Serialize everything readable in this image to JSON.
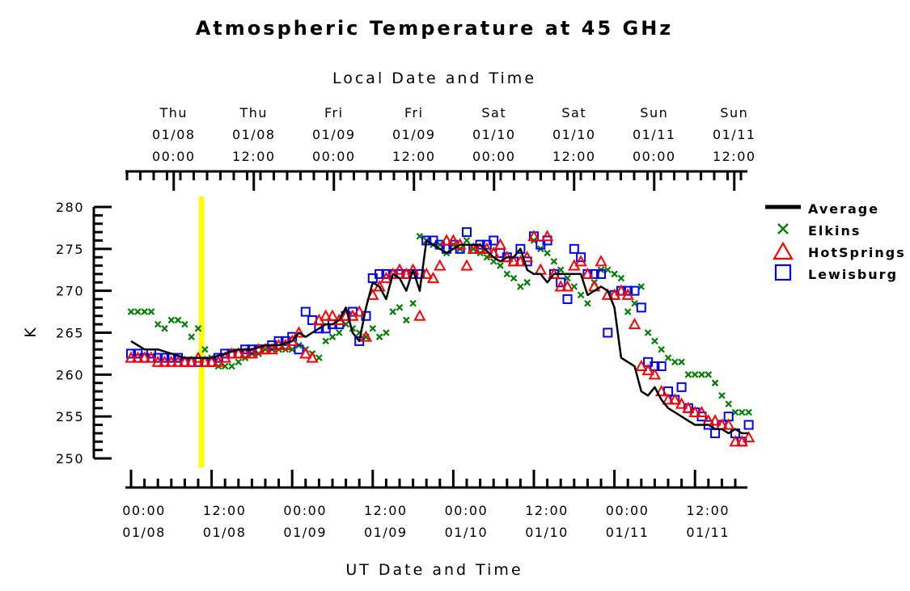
{
  "chart_data": {
    "type": "line",
    "title": "Atmospheric Temperature at 45 GHz",
    "xlabel": "UT Date and Time",
    "top_axis_label": "Local Date and Time",
    "ylabel": "K",
    "ylim": [
      250,
      280
    ],
    "yticks": [
      250,
      255,
      260,
      265,
      270,
      275,
      280
    ],
    "xlim": [
      0,
      92
    ],
    "x_units": "hours since 01/08 00:00 UT",
    "marker_hour": 10.5,
    "bottom_ticks": [
      {
        "x": 0,
        "time": "00:00",
        "date": "01/08"
      },
      {
        "x": 12,
        "time": "12:00",
        "date": "01/08"
      },
      {
        "x": 24,
        "time": "00:00",
        "date": "01/09"
      },
      {
        "x": 36,
        "time": "12:00",
        "date": "01/09"
      },
      {
        "x": 48,
        "time": "00:00",
        "date": "01/10"
      },
      {
        "x": 60,
        "time": "12:00",
        "date": "01/10"
      },
      {
        "x": 72,
        "time": "00:00",
        "date": "01/11"
      },
      {
        "x": 84,
        "time": "12:00",
        "date": "01/11"
      }
    ],
    "top_ticks": [
      {
        "x": 7,
        "day": "Thu",
        "date": "01/08",
        "time": "00:00"
      },
      {
        "x": 19,
        "day": "Thu",
        "date": "01/08",
        "time": "12:00"
      },
      {
        "x": 31,
        "day": "Fri",
        "date": "01/09",
        "time": "00:00"
      },
      {
        "x": 43,
        "day": "Fri",
        "date": "01/09",
        "time": "12:00"
      },
      {
        "x": 55,
        "day": "Sat",
        "date": "01/10",
        "time": "00:00"
      },
      {
        "x": 67,
        "day": "Sat",
        "date": "01/10",
        "time": "12:00"
      },
      {
        "x": 79,
        "day": "Sun",
        "date": "01/11",
        "time": "00:00"
      },
      {
        "x": 91,
        "day": "Sun",
        "date": "01/11",
        "time": "12:00"
      }
    ],
    "legend_position": "right",
    "series": [
      {
        "name": "Average",
        "style": "line",
        "color": "#000000",
        "x": [
          0,
          2,
          4,
          6,
          8,
          10,
          12,
          14,
          16,
          18,
          20,
          22,
          24,
          25,
          26,
          27,
          28,
          29,
          30,
          31,
          32,
          33,
          34,
          35,
          36,
          37,
          38,
          39,
          40,
          41,
          42,
          43,
          44,
          45,
          46,
          47,
          48,
          49,
          50,
          52,
          54,
          55,
          56,
          57,
          58,
          59,
          60,
          61,
          62,
          63,
          64,
          65,
          66,
          67,
          68,
          69,
          70,
          71,
          72,
          73,
          74,
          75,
          76,
          77,
          78,
          79,
          80,
          81,
          82,
          83,
          84,
          85,
          86,
          87,
          88,
          89,
          90,
          91,
          92
        ],
        "y": [
          264,
          263,
          263,
          262.5,
          262,
          262,
          262,
          262.5,
          263,
          263,
          263.5,
          263.5,
          264,
          265,
          264.5,
          265,
          265.5,
          266,
          266,
          266.5,
          268,
          265,
          264,
          268,
          271,
          270.5,
          269,
          272,
          271.5,
          270,
          272.5,
          270,
          276,
          275.5,
          275,
          274.5,
          275,
          275.5,
          275.5,
          275.5,
          274,
          273.5,
          274,
          274,
          275,
          272.5,
          272,
          272,
          271,
          272,
          272,
          272,
          272,
          272,
          269.5,
          270,
          270.5,
          270,
          268,
          262,
          261.5,
          261,
          258,
          257.5,
          258.5,
          257,
          256,
          255.5,
          255,
          254.5,
          254,
          254,
          254,
          253.5,
          253.5,
          253,
          253.5,
          253,
          253
        ]
      },
      {
        "name": "Elkins",
        "style": "marker",
        "marker": "x",
        "color": "#008000",
        "x": [
          0,
          1,
          2,
          3,
          4,
          5,
          6,
          7,
          8,
          9,
          10,
          11,
          12,
          13,
          14,
          15,
          16,
          17,
          18,
          19,
          20,
          21,
          22,
          23,
          24,
          25,
          26,
          27,
          28,
          29,
          30,
          31,
          32,
          33,
          34,
          35,
          36,
          37,
          38,
          39,
          40,
          41,
          42,
          43,
          44,
          45,
          46,
          47,
          48,
          49,
          50,
          51,
          52,
          53,
          54,
          55,
          56,
          57,
          58,
          59,
          60,
          61,
          62,
          63,
          64,
          65,
          66,
          67,
          68,
          69,
          70,
          71,
          72,
          73,
          74,
          75,
          76,
          77,
          78,
          79,
          80,
          81,
          82,
          83,
          84,
          85,
          86,
          87,
          88,
          89,
          90,
          91,
          92
        ],
        "y": [
          267.5,
          267.5,
          267.5,
          267.5,
          266,
          265.5,
          266.5,
          266.5,
          266,
          264.5,
          265.5,
          263,
          262,
          261,
          261,
          261,
          261.5,
          262,
          262.5,
          262.5,
          263,
          263,
          263,
          263,
          263,
          263.5,
          263,
          262.5,
          262,
          264,
          264.5,
          265,
          266,
          265.5,
          265,
          264.5,
          265.5,
          264.5,
          265,
          267.5,
          268,
          266.5,
          268.5,
          276.5,
          276,
          275.5,
          275.5,
          274.5,
          275.5,
          275,
          276,
          275,
          274.5,
          274,
          273.5,
          273,
          272,
          271.5,
          270.5,
          271,
          276,
          275,
          274.5,
          273.5,
          272.5,
          271.5,
          270.5,
          269.5,
          268.5,
          271,
          272.5,
          272.5,
          272,
          271.5,
          267.5,
          268.5,
          270.5,
          265,
          264,
          263,
          262,
          261.5,
          261.5,
          260,
          260,
          260,
          260,
          259,
          257.5,
          256.5,
          255.5,
          255.5,
          255.5
        ]
      },
      {
        "name": "HotSprings",
        "style": "marker",
        "marker": "triangle",
        "color": "#ff0000",
        "x": [
          0,
          1,
          2,
          3,
          4,
          5,
          6,
          7,
          8,
          9,
          10,
          11,
          12,
          13,
          14,
          15,
          16,
          17,
          18,
          19,
          20,
          21,
          22,
          23,
          24,
          25,
          26,
          27,
          28,
          29,
          30,
          31,
          32,
          33,
          34,
          35,
          36,
          37,
          38,
          39,
          40,
          41,
          42,
          43,
          44,
          45,
          46,
          47,
          48,
          49,
          50,
          51,
          52,
          53,
          54,
          55,
          56,
          57,
          58,
          59,
          60,
          61,
          62,
          63,
          64,
          65,
          66,
          67,
          68,
          69,
          70,
          71,
          72,
          73,
          74,
          75,
          76,
          77,
          78,
          79,
          80,
          81,
          82,
          83,
          84,
          85,
          86,
          87,
          88,
          89,
          90,
          91,
          92
        ],
        "y": [
          262,
          262,
          262,
          262,
          261.5,
          261.5,
          261.5,
          261.5,
          261.5,
          261.5,
          262,
          261.5,
          261.5,
          261.5,
          262,
          262.5,
          262.5,
          262.5,
          262.5,
          263,
          263,
          263,
          263.5,
          263.5,
          264,
          265,
          262.5,
          262,
          266.5,
          267,
          267,
          266.5,
          267,
          267,
          267.5,
          264.5,
          269.5,
          270.5,
          271.5,
          272,
          272.5,
          272,
          272.5,
          267,
          272,
          271.5,
          273,
          276,
          276,
          275.5,
          273,
          275,
          275,
          275,
          274.5,
          275.5,
          274,
          273.5,
          273.5,
          274,
          276.5,
          272.5,
          276.5,
          272,
          270.5,
          270.5,
          273,
          273.5,
          272,
          270.5,
          273.5,
          269.5,
          269.5,
          270,
          269.5,
          266,
          261,
          260.5,
          260,
          258,
          257,
          257,
          256.5,
          256,
          255.5,
          255.5,
          254.5,
          254.5,
          254,
          254,
          252,
          252,
          252.5
        ]
      },
      {
        "name": "Lewisburg",
        "style": "marker",
        "marker": "square",
        "color": "#0000ff",
        "x": [
          0,
          1,
          2,
          3,
          4,
          5,
          6,
          7,
          8,
          9,
          10,
          11,
          12,
          13,
          14,
          15,
          16,
          17,
          18,
          19,
          20,
          21,
          22,
          23,
          24,
          25,
          26,
          27,
          28,
          29,
          30,
          31,
          32,
          33,
          34,
          35,
          36,
          37,
          38,
          39,
          40,
          41,
          42,
          43,
          44,
          45,
          46,
          47,
          48,
          49,
          50,
          51,
          52,
          53,
          54,
          55,
          56,
          57,
          58,
          59,
          60,
          61,
          62,
          63,
          64,
          65,
          66,
          67,
          68,
          69,
          70,
          71,
          72,
          73,
          74,
          75,
          76,
          77,
          78,
          79,
          80,
          81,
          82,
          83,
          84,
          85,
          86,
          87,
          88,
          89,
          90,
          91,
          92
        ],
        "y": [
          262.5,
          262.5,
          262,
          262.5,
          262,
          262,
          262,
          262,
          261.5,
          261.5,
          261.5,
          261.5,
          261.5,
          262,
          262.5,
          262.5,
          262.5,
          263,
          263,
          263,
          263,
          263.5,
          264,
          264,
          264.5,
          263,
          267.5,
          266.5,
          265.5,
          265.5,
          266,
          266,
          267,
          267.5,
          264,
          267,
          271.5,
          272,
          272,
          272,
          272,
          272,
          272,
          272,
          276,
          276,
          275.5,
          275,
          275.5,
          275,
          277,
          275,
          275.5,
          275.5,
          276,
          274.5,
          274,
          273.5,
          275,
          273.5,
          276.5,
          275.5,
          276,
          272,
          271,
          269,
          275,
          274,
          272,
          272,
          272,
          265,
          269.5,
          270,
          270,
          270,
          268,
          261.5,
          261,
          261,
          258,
          257,
          258.5,
          256,
          255.5,
          255,
          254,
          253,
          254,
          255,
          253,
          252,
          254
        ]
      }
    ]
  }
}
